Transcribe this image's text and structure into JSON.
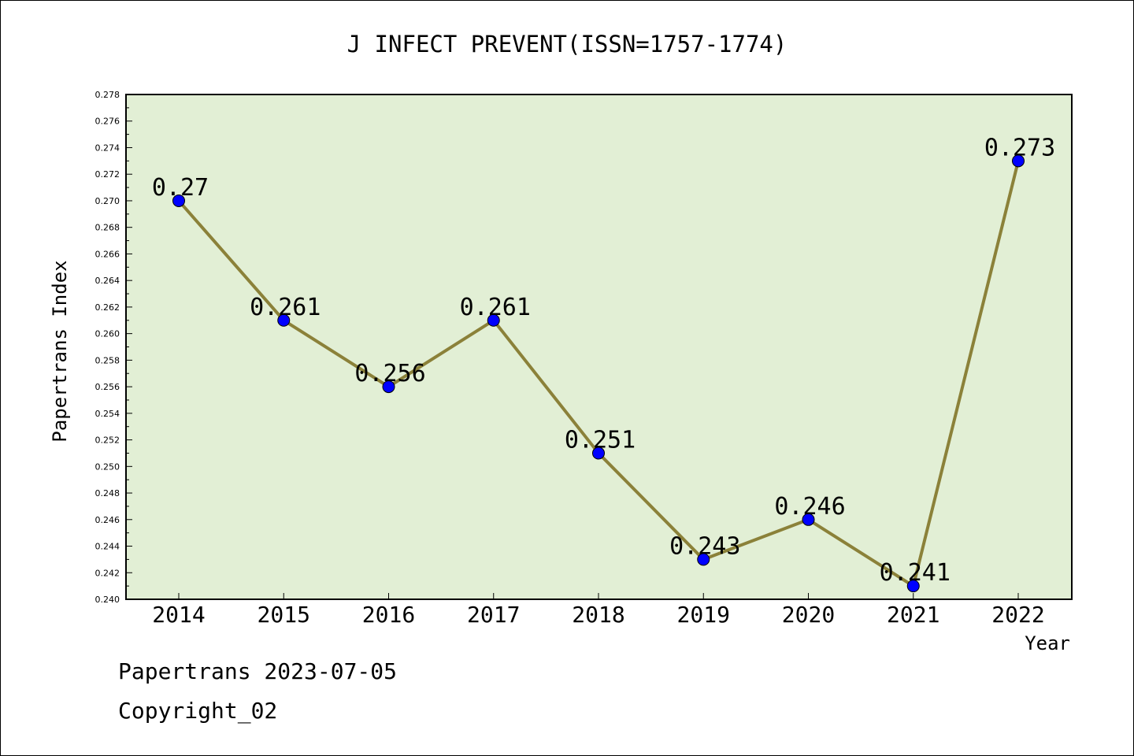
{
  "chart_data": {
    "type": "line",
    "title": "J INFECT PREVENT(ISSN=1757-1774)",
    "xlabel": "Year",
    "ylabel": "Papertrans Index",
    "categories": [
      "2014",
      "2015",
      "2016",
      "2017",
      "2018",
      "2019",
      "2020",
      "2021",
      "2022"
    ],
    "series": [
      {
        "values": [
          0.27,
          0.261,
          0.256,
          0.261,
          0.251,
          0.243,
          0.246,
          0.241,
          0.273
        ],
        "labels": [
          "0.27",
          "0.261",
          "0.256",
          "0.261",
          "0.251",
          "0.243",
          "0.246",
          "0.241",
          "0.273"
        ]
      }
    ],
    "ylim": [
      0.24,
      0.278
    ],
    "yticks": [
      "0.240",
      "0.242",
      "0.244",
      "0.246",
      "0.248",
      "0.250",
      "0.252",
      "0.254",
      "0.256",
      "0.258",
      "0.260",
      "0.262",
      "0.264",
      "0.266",
      "0.268",
      "0.270",
      "0.272",
      "0.274",
      "0.276",
      "0.278"
    ],
    "grid": false,
    "legend": "none",
    "colors": {
      "plot_background": "#e2efd5",
      "line": "#8b8139",
      "marker": "#0000ff"
    }
  },
  "footer": {
    "line1": "Papertrans 2023-07-05",
    "line2": "Copyright_02"
  }
}
